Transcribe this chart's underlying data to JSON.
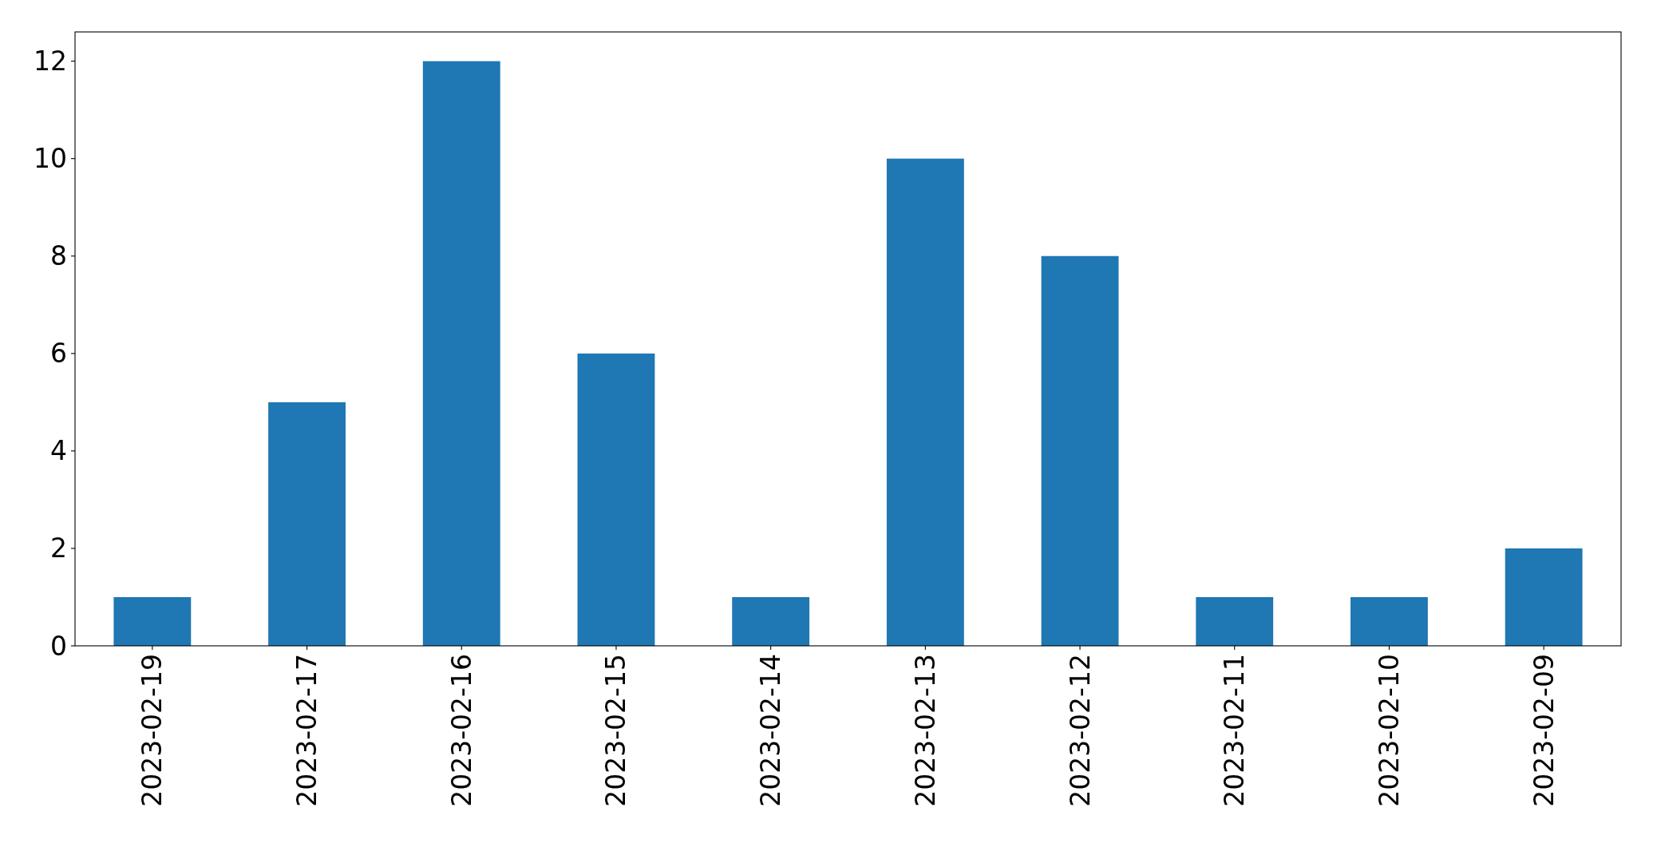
{
  "chart_data": {
    "type": "bar",
    "categories": [
      "2023-02-19",
      "2023-02-17",
      "2023-02-16",
      "2023-02-15",
      "2023-02-14",
      "2023-02-13",
      "2023-02-12",
      "2023-02-11",
      "2023-02-10",
      "2023-02-09"
    ],
    "values": [
      1,
      5,
      12,
      6,
      1,
      10,
      8,
      1,
      1,
      2
    ],
    "color": "#1f77b4",
    "ylim": [
      0,
      12.6
    ],
    "yticks": [
      0,
      2,
      4,
      6,
      8,
      10,
      12
    ]
  }
}
